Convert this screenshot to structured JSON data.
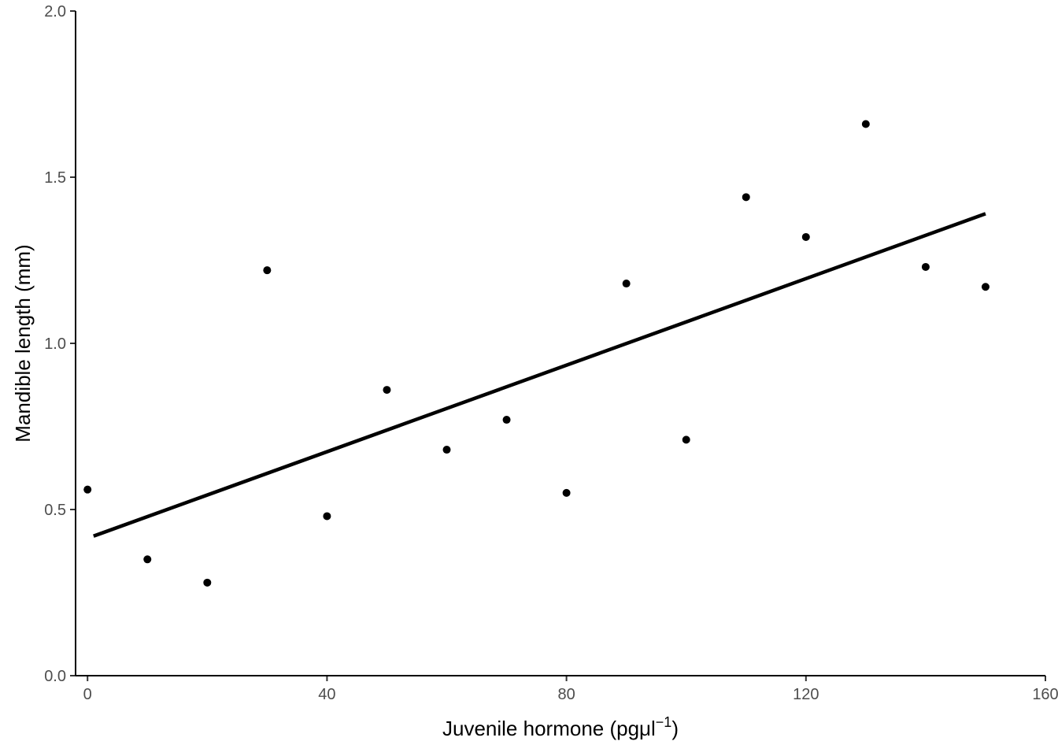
{
  "chart_data": {
    "type": "scatter",
    "title": "",
    "xlabel": "Juvenile hormone (pgμl",
    "xlabel_superscript": "−1",
    "xlabel_suffix": ")",
    "ylabel": "Mandible length (mm)",
    "xlim": [
      -2,
      160
    ],
    "ylim": [
      0,
      2.0
    ],
    "x_ticks": [
      0,
      40,
      80,
      120,
      160
    ],
    "x_tick_labels": [
      "0",
      "40",
      "80",
      "120",
      "160"
    ],
    "y_ticks": [
      0.0,
      0.5,
      1.0,
      1.5,
      2.0
    ],
    "y_tick_labels": [
      "0.0",
      "0.5",
      "1.0",
      "1.5",
      "2.0"
    ],
    "grid": false,
    "legend": "none",
    "series": [
      {
        "x": [
          0,
          10,
          20,
          30,
          40,
          50,
          60,
          70,
          80,
          90,
          100,
          110,
          120,
          130,
          140,
          150
        ],
        "y": [
          0.56,
          0.35,
          0.28,
          1.22,
          0.48,
          0.86,
          0.68,
          0.77,
          0.55,
          1.18,
          0.71,
          1.44,
          1.32,
          1.66,
          1.23,
          1.17
        ]
      }
    ],
    "fit_line": {
      "x": [
        1,
        150
      ],
      "y": [
        0.42,
        1.39
      ]
    },
    "colors": {
      "points": "#000000",
      "line": "#000000",
      "axis": "#000000",
      "tick_text": "#4d4d4d"
    }
  }
}
